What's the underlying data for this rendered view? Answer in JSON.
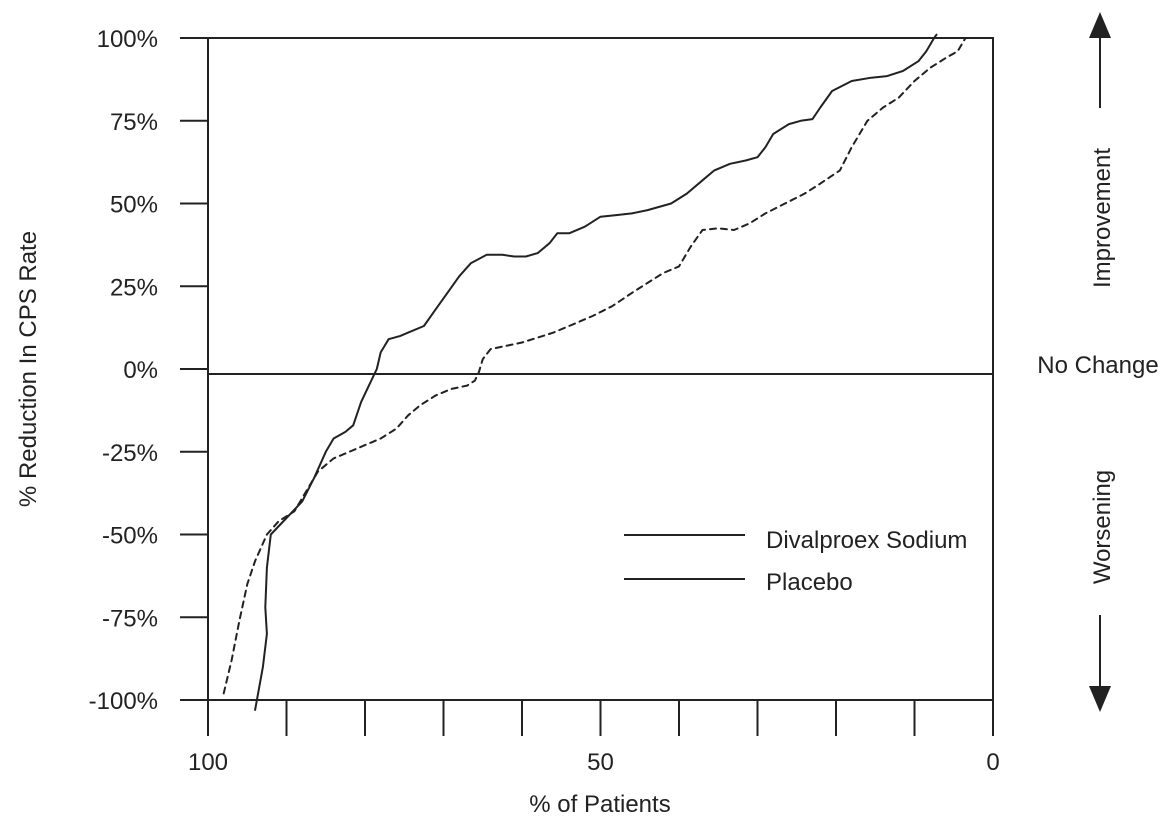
{
  "chart_data": {
    "type": "line",
    "title": "",
    "xlabel": "% of Patients",
    "ylabel": "% Reduction In CPS Rate",
    "x_axis_reversed": true,
    "xlim": [
      100,
      0
    ],
    "ylim": [
      -100,
      100
    ],
    "x_ticks": [
      100,
      50,
      0
    ],
    "x_minor_ticks": [
      100,
      90,
      80,
      70,
      60,
      50,
      40,
      30,
      20,
      10,
      0
    ],
    "y_ticks": [
      100,
      75,
      50,
      25,
      0,
      -25,
      -50,
      -75,
      -100
    ],
    "y_tick_labels": [
      "100%",
      "75%",
      "50%",
      "25%",
      "0%",
      "-25%",
      "-50%",
      "-75%",
      "-100%"
    ],
    "reference_line": {
      "y": 0,
      "label": "No Change"
    },
    "side_labels": {
      "up": "Improvement",
      "down": "Worsening"
    },
    "legend_position": "lower-right",
    "colors": {
      "line": "#222222",
      "axis": "#222222",
      "background": "#ffffff"
    },
    "series": [
      {
        "name": "Divalproex Sodium",
        "style": "solid",
        "points": [
          [
            94,
            -103
          ],
          [
            93,
            -90
          ],
          [
            92.5,
            -80
          ],
          [
            92.7,
            -72
          ],
          [
            92.5,
            -60
          ],
          [
            92,
            -50
          ],
          [
            90,
            -45
          ],
          [
            88,
            -40
          ],
          [
            86.5,
            -33
          ],
          [
            85,
            -25
          ],
          [
            84,
            -21
          ],
          [
            82.5,
            -19
          ],
          [
            81.5,
            -17
          ],
          [
            80.5,
            -10
          ],
          [
            79.5,
            -5
          ],
          [
            78.5,
            0
          ],
          [
            78,
            5
          ],
          [
            77,
            9
          ],
          [
            75.5,
            10
          ],
          [
            74.5,
            11
          ],
          [
            72.5,
            13
          ],
          [
            71,
            18
          ],
          [
            69.5,
            23
          ],
          [
            68,
            28
          ],
          [
            66.5,
            32
          ],
          [
            64.5,
            34.5
          ],
          [
            62.5,
            34.5
          ],
          [
            61,
            34
          ],
          [
            59.5,
            34
          ],
          [
            58,
            35
          ],
          [
            56.5,
            38
          ],
          [
            55.5,
            41
          ],
          [
            54,
            41
          ],
          [
            52,
            43
          ],
          [
            50,
            46
          ],
          [
            48,
            46.5
          ],
          [
            46,
            47
          ],
          [
            44,
            48
          ],
          [
            41,
            50
          ],
          [
            39,
            53
          ],
          [
            37,
            57
          ],
          [
            35.5,
            60
          ],
          [
            33.5,
            62
          ],
          [
            31.5,
            63
          ],
          [
            30,
            64
          ],
          [
            29,
            67
          ],
          [
            28,
            71
          ],
          [
            26,
            74
          ],
          [
            24.5,
            75
          ],
          [
            23,
            75.5
          ],
          [
            22,
            79
          ],
          [
            20.5,
            84
          ],
          [
            18,
            87
          ],
          [
            15.5,
            88
          ],
          [
            13.5,
            88.5
          ],
          [
            11.5,
            90
          ],
          [
            9.5,
            93
          ],
          [
            8.5,
            96
          ],
          [
            7.5,
            100
          ],
          [
            7.2,
            101
          ]
        ]
      },
      {
        "name": "Placebo",
        "style": "dashed",
        "points": [
          [
            98,
            -98
          ],
          [
            97,
            -88
          ],
          [
            96,
            -76
          ],
          [
            95,
            -65
          ],
          [
            94,
            -58
          ],
          [
            92.5,
            -50
          ],
          [
            91,
            -46
          ],
          [
            89,
            -43
          ],
          [
            87.5,
            -37
          ],
          [
            86,
            -31
          ],
          [
            84,
            -27
          ],
          [
            82,
            -25
          ],
          [
            80,
            -23
          ],
          [
            78,
            -21
          ],
          [
            76,
            -18
          ],
          [
            74.5,
            -14
          ],
          [
            73,
            -11
          ],
          [
            71,
            -8
          ],
          [
            69,
            -6
          ],
          [
            67,
            -5
          ],
          [
            66,
            -3.5
          ],
          [
            65.5,
            -1
          ],
          [
            65,
            3
          ],
          [
            64,
            6
          ],
          [
            62,
            7
          ],
          [
            60,
            8
          ],
          [
            58,
            9.5
          ],
          [
            56,
            11
          ],
          [
            54,
            13
          ],
          [
            51,
            16
          ],
          [
            48.5,
            19
          ],
          [
            46,
            23
          ],
          [
            44,
            26
          ],
          [
            42,
            29
          ],
          [
            40,
            31
          ],
          [
            38.5,
            37
          ],
          [
            37,
            42
          ],
          [
            35,
            42.5
          ],
          [
            33,
            42
          ],
          [
            31,
            44
          ],
          [
            29,
            47
          ],
          [
            26.5,
            50
          ],
          [
            24,
            53
          ],
          [
            22,
            56
          ],
          [
            19.5,
            60
          ],
          [
            18,
            67
          ],
          [
            16,
            75
          ],
          [
            14,
            79
          ],
          [
            12,
            82
          ],
          [
            10,
            87
          ],
          [
            8,
            91
          ],
          [
            6,
            94
          ],
          [
            4.5,
            96
          ],
          [
            3.5,
            100
          ]
        ]
      }
    ]
  }
}
